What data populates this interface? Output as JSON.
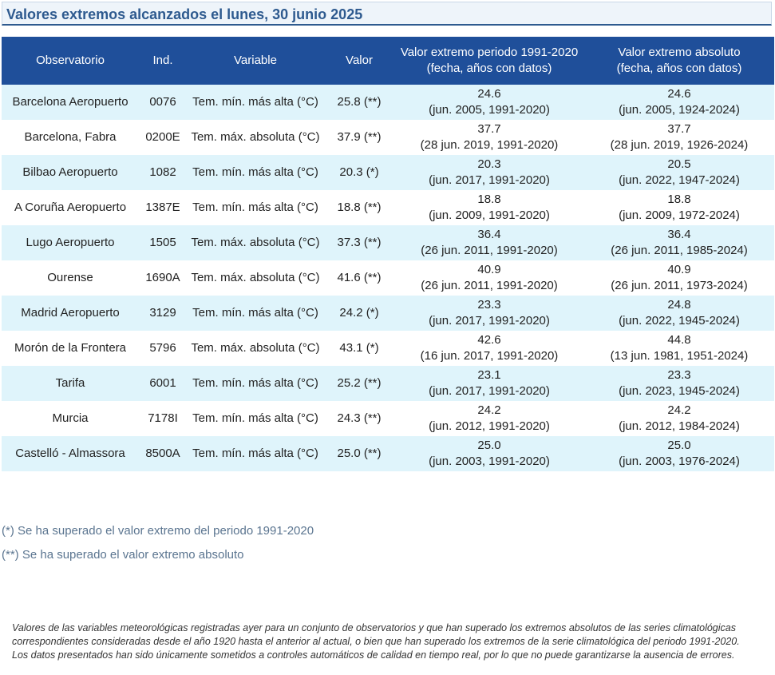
{
  "title": "Valores extremos alcanzados el lunes, 30 junio 2025",
  "headers": {
    "observatorio": "Observatorio",
    "ind": "Ind.",
    "variable": "Variable",
    "valor": "Valor",
    "periodo_l1": "Valor extremo periodo 1991-2020",
    "periodo_l2": "(fecha, años con datos)",
    "absoluto_l1": "Valor extremo absoluto",
    "absoluto_l2": "(fecha, años con datos)"
  },
  "rows": [
    {
      "observatorio": "Barcelona Aeropuerto",
      "ind": "0076",
      "variable": "Tem. mín. más alta (°C)",
      "valor": "25.8 (**)",
      "per_val": "24.6",
      "per_info": "(jun. 2005, 1991-2020)",
      "abs_val": "24.6",
      "abs_info": "(jun. 2005, 1924-2024)"
    },
    {
      "observatorio": "Barcelona, Fabra",
      "ind": "0200E",
      "variable": "Tem. máx. absoluta (°C)",
      "valor": "37.9 (**)",
      "per_val": "37.7",
      "per_info": "(28 jun. 2019, 1991-2020)",
      "abs_val": "37.7",
      "abs_info": "(28 jun. 2019, 1926-2024)"
    },
    {
      "observatorio": "Bilbao Aeropuerto",
      "ind": "1082",
      "variable": "Tem. mín. más alta (°C)",
      "valor": "20.3 (*)",
      "per_val": "20.3",
      "per_info": "(jun. 2017, 1991-2020)",
      "abs_val": "20.5",
      "abs_info": "(jun. 2022, 1947-2024)"
    },
    {
      "observatorio": "A Coruña Aeropuerto",
      "ind": "1387E",
      "variable": "Tem. mín. más alta (°C)",
      "valor": "18.8 (**)",
      "per_val": "18.8",
      "per_info": "(jun. 2009, 1991-2020)",
      "abs_val": "18.8",
      "abs_info": "(jun. 2009, 1972-2024)"
    },
    {
      "observatorio": "Lugo Aeropuerto",
      "ind": "1505",
      "variable": "Tem. máx. absoluta (°C)",
      "valor": "37.3 (**)",
      "per_val": "36.4",
      "per_info": "(26 jun. 2011, 1991-2020)",
      "abs_val": "36.4",
      "abs_info": "(26 jun. 2011, 1985-2024)"
    },
    {
      "observatorio": "Ourense",
      "ind": "1690A",
      "variable": "Tem. máx. absoluta (°C)",
      "valor": "41.6 (**)",
      "per_val": "40.9",
      "per_info": "(26 jun. 2011, 1991-2020)",
      "abs_val": "40.9",
      "abs_info": "(26 jun. 2011, 1973-2024)"
    },
    {
      "observatorio": "Madrid Aeropuerto",
      "ind": "3129",
      "variable": "Tem. mín. más alta (°C)",
      "valor": "24.2 (*)",
      "per_val": "23.3",
      "per_info": "(jun. 2017, 1991-2020)",
      "abs_val": "24.8",
      "abs_info": "(jun. 2022, 1945-2024)"
    },
    {
      "observatorio": "Morón de la Frontera",
      "ind": "5796",
      "variable": "Tem. máx. absoluta (°C)",
      "valor": "43.1 (*)",
      "per_val": "42.6",
      "per_info": "(16 jun. 2017, 1991-2020)",
      "abs_val": "44.8",
      "abs_info": "(13 jun. 1981, 1951-2024)"
    },
    {
      "observatorio": "Tarifa",
      "ind": "6001",
      "variable": "Tem. mín. más alta (°C)",
      "valor": "25.2 (**)",
      "per_val": "23.1",
      "per_info": "(jun. 2017, 1991-2020)",
      "abs_val": "23.3",
      "abs_info": "(jun. 2023, 1945-2024)"
    },
    {
      "observatorio": "Murcia",
      "ind": "7178I",
      "variable": "Tem. mín. más alta (°C)",
      "valor": "24.3 (**)",
      "per_val": "24.2",
      "per_info": "(jun. 2012, 1991-2020)",
      "abs_val": "24.2",
      "abs_info": "(jun. 2012, 1984-2024)"
    },
    {
      "observatorio": "Castelló - Almassora",
      "ind": "8500A",
      "variable": "Tem. mín. más alta (°C)",
      "valor": "25.0 (**)",
      "per_val": "25.0",
      "per_info": "(jun. 2003, 1991-2020)",
      "abs_val": "25.0",
      "abs_info": "(jun. 2003, 1976-2024)"
    }
  ],
  "footnotes": [
    "(*) Se ha superado el valor extremo del periodo 1991-2020",
    "(**) Se ha superado el valor extremo absoluto"
  ],
  "disclaimer": [
    "Valores de las variables meteorológicas registradas ayer para un conjunto de observatorios y que han superado los extremos absolutos de las series climatológicas correspondientes consideradas desde el año 1920 hasta el anterior al actual, o bien que han superado los extremos de la serie climatológica del periodo 1991-2020.",
    "Los datos presentados han sido únicamente sometidos a controles automáticos de calidad en tiempo real, por lo que no puede garantizarse la ausencia de errores."
  ]
}
